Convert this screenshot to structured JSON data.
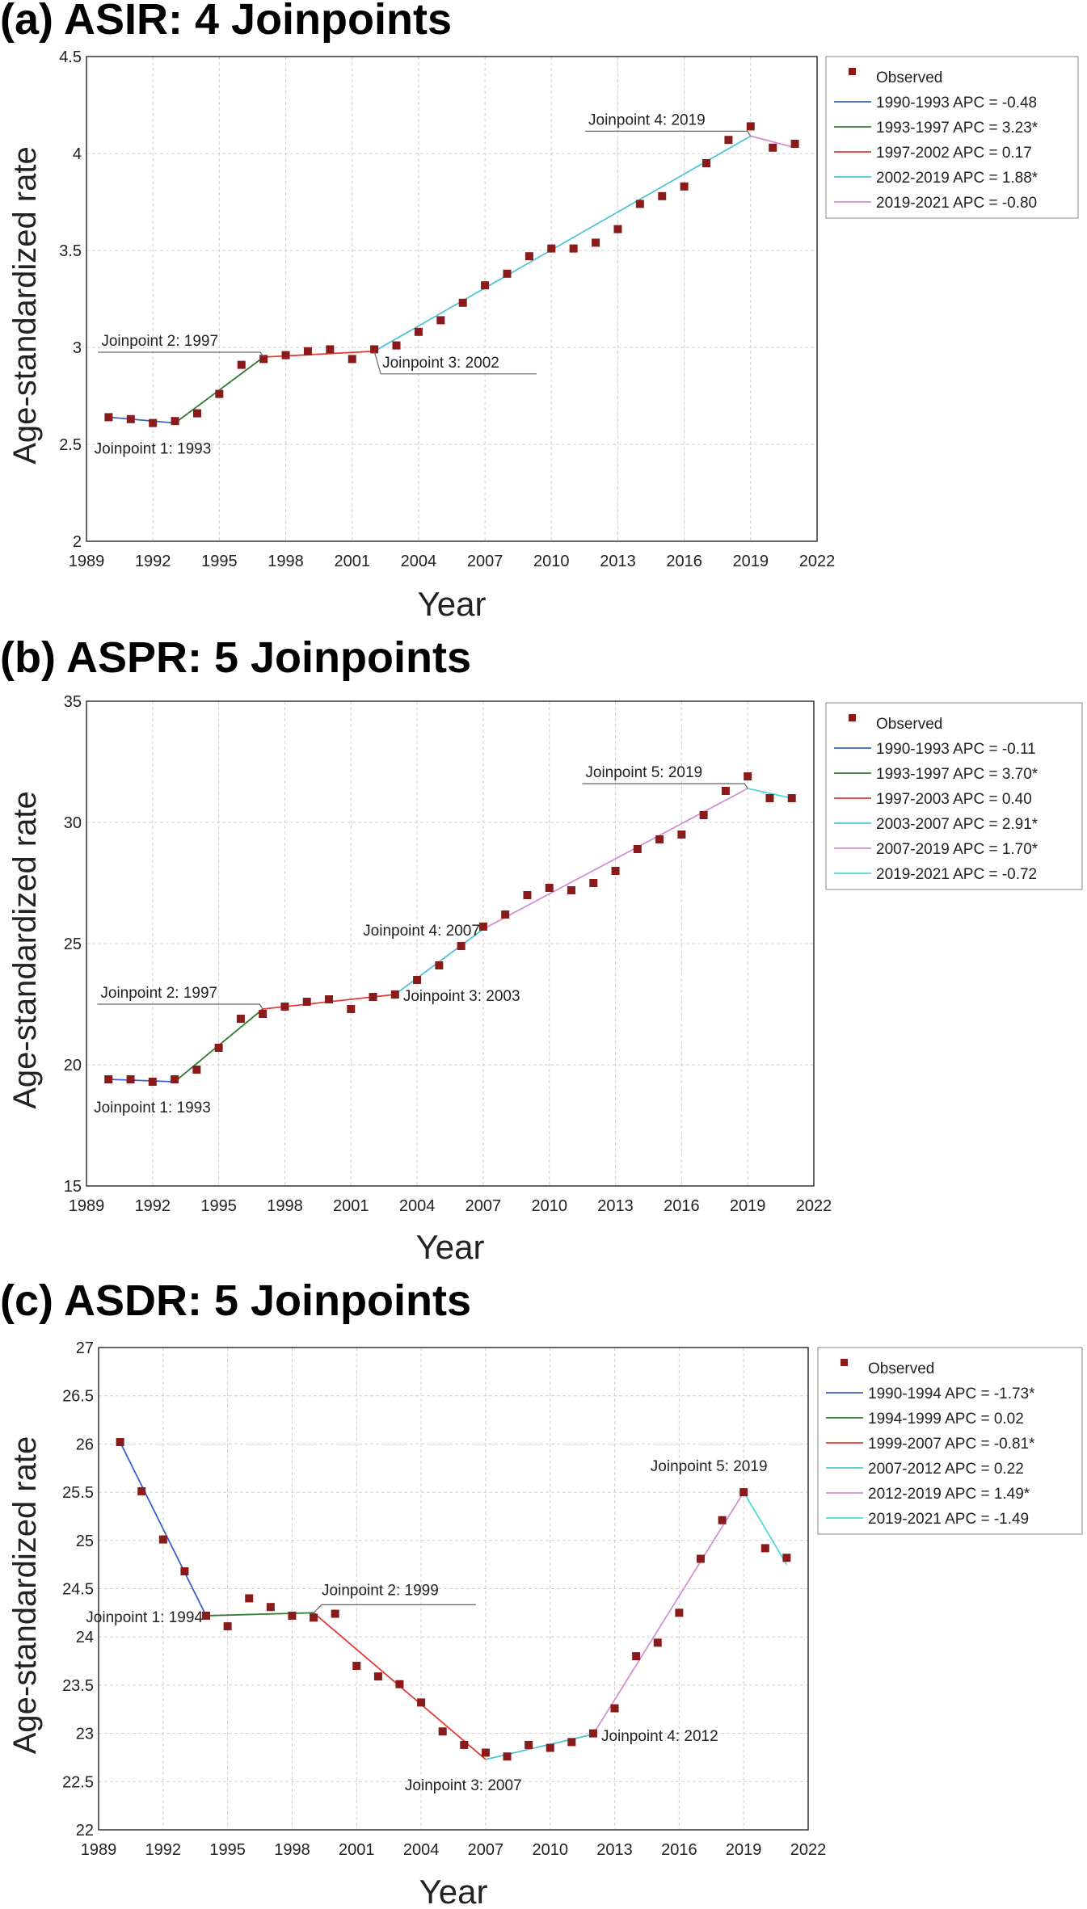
{
  "charts": [
    {
      "id": "a",
      "panel_title": "(a) ASIR: 4 Joinpoints",
      "chart_data": {
        "type": "scatter",
        "title": "(a) ASIR: 4 Joinpoints",
        "xlabel": "Year",
        "ylabel": "Age-standardized rate",
        "xlim": [
          1989,
          2022
        ],
        "ylim": [
          2,
          4.5
        ],
        "xticks": [
          1989,
          1992,
          1995,
          1998,
          2001,
          2004,
          2007,
          2010,
          2013,
          2016,
          2019,
          2022
        ],
        "yticks": [
          2,
          2.5,
          3,
          3.5,
          4,
          4.5
        ],
        "ytick_labels": [
          "2",
          "2.5",
          "3",
          "3.5",
          "4",
          "4.5"
        ],
        "grid": true,
        "legend_position": "right",
        "observed_label": "Observed",
        "observed_color": "#8b1a1a",
        "observed": {
          "x": [
            1990,
            1991,
            1992,
            1993,
            1994,
            1995,
            1996,
            1997,
            1998,
            1999,
            2000,
            2001,
            2002,
            2003,
            2004,
            2005,
            2006,
            2007,
            2008,
            2009,
            2010,
            2011,
            2012,
            2013,
            2014,
            2015,
            2016,
            2017,
            2018,
            2019,
            2020,
            2021
          ],
          "y": [
            2.64,
            2.63,
            2.61,
            2.62,
            2.66,
            2.76,
            2.91,
            2.94,
            2.96,
            2.98,
            2.99,
            2.94,
            2.99,
            3.01,
            3.08,
            3.14,
            3.23,
            3.32,
            3.38,
            3.47,
            3.51,
            3.51,
            3.54,
            3.61,
            3.74,
            3.78,
            3.83,
            3.95,
            4.07,
            4.14,
            4.03,
            4.05
          ]
        },
        "segments": [
          {
            "label": "1990-1993 APC =  -0.48",
            "color": "#3a5fcd",
            "x": [
              1990,
              1993
            ],
            "y": [
              2.64,
              2.61
            ]
          },
          {
            "label": "1993-1997 APC =  3.23*",
            "color": "#2e7d32",
            "x": [
              1993,
              1997
            ],
            "y": [
              2.61,
              2.95
            ]
          },
          {
            "label": "1997-2002 APC =  0.17",
            "color": "#e53935",
            "x": [
              1997,
              2002
            ],
            "y": [
              2.95,
              2.98
            ]
          },
          {
            "label": "2002-2019 APC =  1.88*",
            "color": "#4fc3d7",
            "x": [
              2002,
              2019
            ],
            "y": [
              2.98,
              4.09
            ]
          },
          {
            "label": "2019-2021 APC =  -0.80",
            "color": "#d48fd4",
            "x": [
              2019,
              2021
            ],
            "y": [
              4.09,
              4.03
            ]
          }
        ],
        "annotations": [
          {
            "text": "Joinpoint 1:  1993",
            "year": 1993,
            "val": 2.61,
            "pos": "below"
          },
          {
            "text": "Joinpoint 2:  1997",
            "year": 1997,
            "val": 2.95,
            "pos": "above-left"
          },
          {
            "text": "Joinpoint 3:  2002",
            "year": 2002,
            "val": 2.98,
            "pos": "below-right"
          },
          {
            "text": "Joinpoint 4:  2019",
            "year": 2019,
            "val": 4.09,
            "pos": "above-left"
          }
        ]
      }
    },
    {
      "id": "b",
      "panel_title": "(b) ASPR: 5 Joinpoints",
      "chart_data": {
        "type": "scatter",
        "title": "(b) ASPR: 5 Joinpoints",
        "xlabel": "Year",
        "ylabel": "Age-standardized rate",
        "xlim": [
          1989,
          2022
        ],
        "ylim": [
          15,
          35
        ],
        "xticks": [
          1989,
          1992,
          1995,
          1998,
          2001,
          2004,
          2007,
          2010,
          2013,
          2016,
          2019,
          2022
        ],
        "yticks": [
          15,
          20,
          25,
          30,
          35
        ],
        "ytick_labels": [
          "15",
          "20",
          "25",
          "30",
          "35"
        ],
        "grid": true,
        "legend_position": "right",
        "observed_label": "Observed",
        "observed_color": "#8b1a1a",
        "observed": {
          "x": [
            1990,
            1991,
            1992,
            1993,
            1994,
            1995,
            1996,
            1997,
            1998,
            1999,
            2000,
            2001,
            2002,
            2003,
            2004,
            2005,
            2006,
            2007,
            2008,
            2009,
            2010,
            2011,
            2012,
            2013,
            2014,
            2015,
            2016,
            2017,
            2018,
            2019,
            2020,
            2021
          ],
          "y": [
            19.4,
            19.4,
            19.3,
            19.4,
            19.8,
            20.7,
            21.9,
            22.1,
            22.4,
            22.6,
            22.7,
            22.3,
            22.8,
            22.9,
            23.5,
            24.1,
            24.9,
            25.7,
            26.2,
            27.0,
            27.3,
            27.2,
            27.5,
            28.0,
            28.9,
            29.3,
            29.5,
            30.3,
            31.3,
            31.9,
            31.0,
            31.0
          ]
        },
        "segments": [
          {
            "label": "1990-1993 APC =  -0.11",
            "color": "#3a5fcd",
            "x": [
              1990,
              1993
            ],
            "y": [
              19.4,
              19.3
            ]
          },
          {
            "label": "1993-1997 APC =  3.70*",
            "color": "#2e7d32",
            "x": [
              1993,
              1997
            ],
            "y": [
              19.3,
              22.3
            ]
          },
          {
            "label": "1997-2003 APC =  0.40",
            "color": "#e53935",
            "x": [
              1997,
              2003
            ],
            "y": [
              22.3,
              22.9
            ]
          },
          {
            "label": "2003-2007 APC =  2.91*",
            "color": "#4fc3d7",
            "x": [
              2003,
              2007
            ],
            "y": [
              22.9,
              25.6
            ]
          },
          {
            "label": "2007-2019 APC =  1.70*",
            "color": "#d48fd4",
            "x": [
              2007,
              2019
            ],
            "y": [
              25.6,
              31.4
            ]
          },
          {
            "label": "2019-2021 APC =  -0.72",
            "color": "#4fd8d8",
            "x": [
              2019,
              2021
            ],
            "y": [
              31.4,
              31.0
            ]
          }
        ],
        "annotations": [
          {
            "text": "Joinpoint 1:  1993",
            "year": 1993,
            "val": 19.3,
            "pos": "below"
          },
          {
            "text": "Joinpoint 2:  1997",
            "year": 1997,
            "val": 22.3,
            "pos": "above-left"
          },
          {
            "text": "Joinpoint 3:  2003",
            "year": 2003,
            "val": 22.9,
            "pos": "right"
          },
          {
            "text": "Joinpoint 4:  2007",
            "year": 2007,
            "val": 25.6,
            "pos": "left"
          },
          {
            "text": "Joinpoint 5:  2019",
            "year": 2019,
            "val": 31.4,
            "pos": "above-left"
          }
        ]
      }
    },
    {
      "id": "c",
      "panel_title": "(c) ASDR: 5 Joinpoints",
      "chart_data": {
        "type": "scatter",
        "title": "(c) ASDR: 5 Joinpoints",
        "xlabel": "Year",
        "ylabel": "Age-standardized rate",
        "xlim": [
          1989,
          2022
        ],
        "ylim": [
          22,
          27
        ],
        "xticks": [
          1989,
          1992,
          1995,
          1998,
          2001,
          2004,
          2007,
          2010,
          2013,
          2016,
          2019,
          2022
        ],
        "yticks": [
          22,
          22.5,
          23,
          23.5,
          24,
          24.5,
          25,
          25.5,
          26,
          26.5,
          27
        ],
        "ytick_labels": [
          "22",
          "22.5",
          "23",
          "23.5",
          "24",
          "24.5",
          "25",
          "25.5",
          "26",
          "26.5",
          "27"
        ],
        "grid": true,
        "legend_position": "right",
        "observed_label": "Observed",
        "observed_color": "#8b1a1a",
        "observed": {
          "x": [
            1990,
            1991,
            1992,
            1993,
            1994,
            1995,
            1996,
            1997,
            1998,
            1999,
            2000,
            2001,
            2002,
            2003,
            2004,
            2005,
            2006,
            2007,
            2008,
            2009,
            2010,
            2011,
            2012,
            2013,
            2014,
            2015,
            2016,
            2017,
            2018,
            2019,
            2020,
            2021
          ],
          "y": [
            26.02,
            25.51,
            25.01,
            24.68,
            24.22,
            24.11,
            24.4,
            24.31,
            24.22,
            24.2,
            24.24,
            23.7,
            23.59,
            23.51,
            23.32,
            23.02,
            22.88,
            22.8,
            22.76,
            22.88,
            22.85,
            22.91,
            23.0,
            23.26,
            23.8,
            23.94,
            24.25,
            24.81,
            25.21,
            25.5,
            24.92,
            24.82
          ]
        },
        "segments": [
          {
            "label": "1990-1994 APC =  -1.73*",
            "color": "#3a5fcd",
            "x": [
              1990,
              1994
            ],
            "y": [
              26.02,
              24.22
            ]
          },
          {
            "label": "1994-1999 APC =  0.02",
            "color": "#2e7d32",
            "x": [
              1994,
              1999
            ],
            "y": [
              24.22,
              24.25
            ]
          },
          {
            "label": "1999-2007 APC =  -0.81*",
            "color": "#e53935",
            "x": [
              1999,
              2007
            ],
            "y": [
              24.25,
              22.73
            ]
          },
          {
            "label": "2007-2012 APC =  0.22",
            "color": "#4fc3d7",
            "x": [
              2007,
              2012
            ],
            "y": [
              22.73,
              22.99
            ]
          },
          {
            "label": "2012-2019 APC =  1.49*",
            "color": "#d48fd4",
            "x": [
              2012,
              2019
            ],
            "y": [
              22.99,
              25.5
            ]
          },
          {
            "label": "2019-2021 APC =  -1.49",
            "color": "#4fd8d8",
            "x": [
              2019,
              2021
            ],
            "y": [
              25.5,
              24.75
            ]
          }
        ],
        "annotations": [
          {
            "text": "Joinpoint 1:  1994",
            "year": 1994,
            "val": 24.22,
            "pos": "left"
          },
          {
            "text": "Joinpoint 2:  1999",
            "year": 1999,
            "val": 24.25,
            "pos": "above-right"
          },
          {
            "text": "Joinpoint 3:  2007",
            "year": 2007,
            "val": 22.73,
            "pos": "below"
          },
          {
            "text": "Joinpoint 4:  2012",
            "year": 2012,
            "val": 22.99,
            "pos": "right"
          },
          {
            "text": "Joinpoint 5:  2019",
            "year": 2019,
            "val": 25.5,
            "pos": "above"
          }
        ]
      }
    }
  ]
}
